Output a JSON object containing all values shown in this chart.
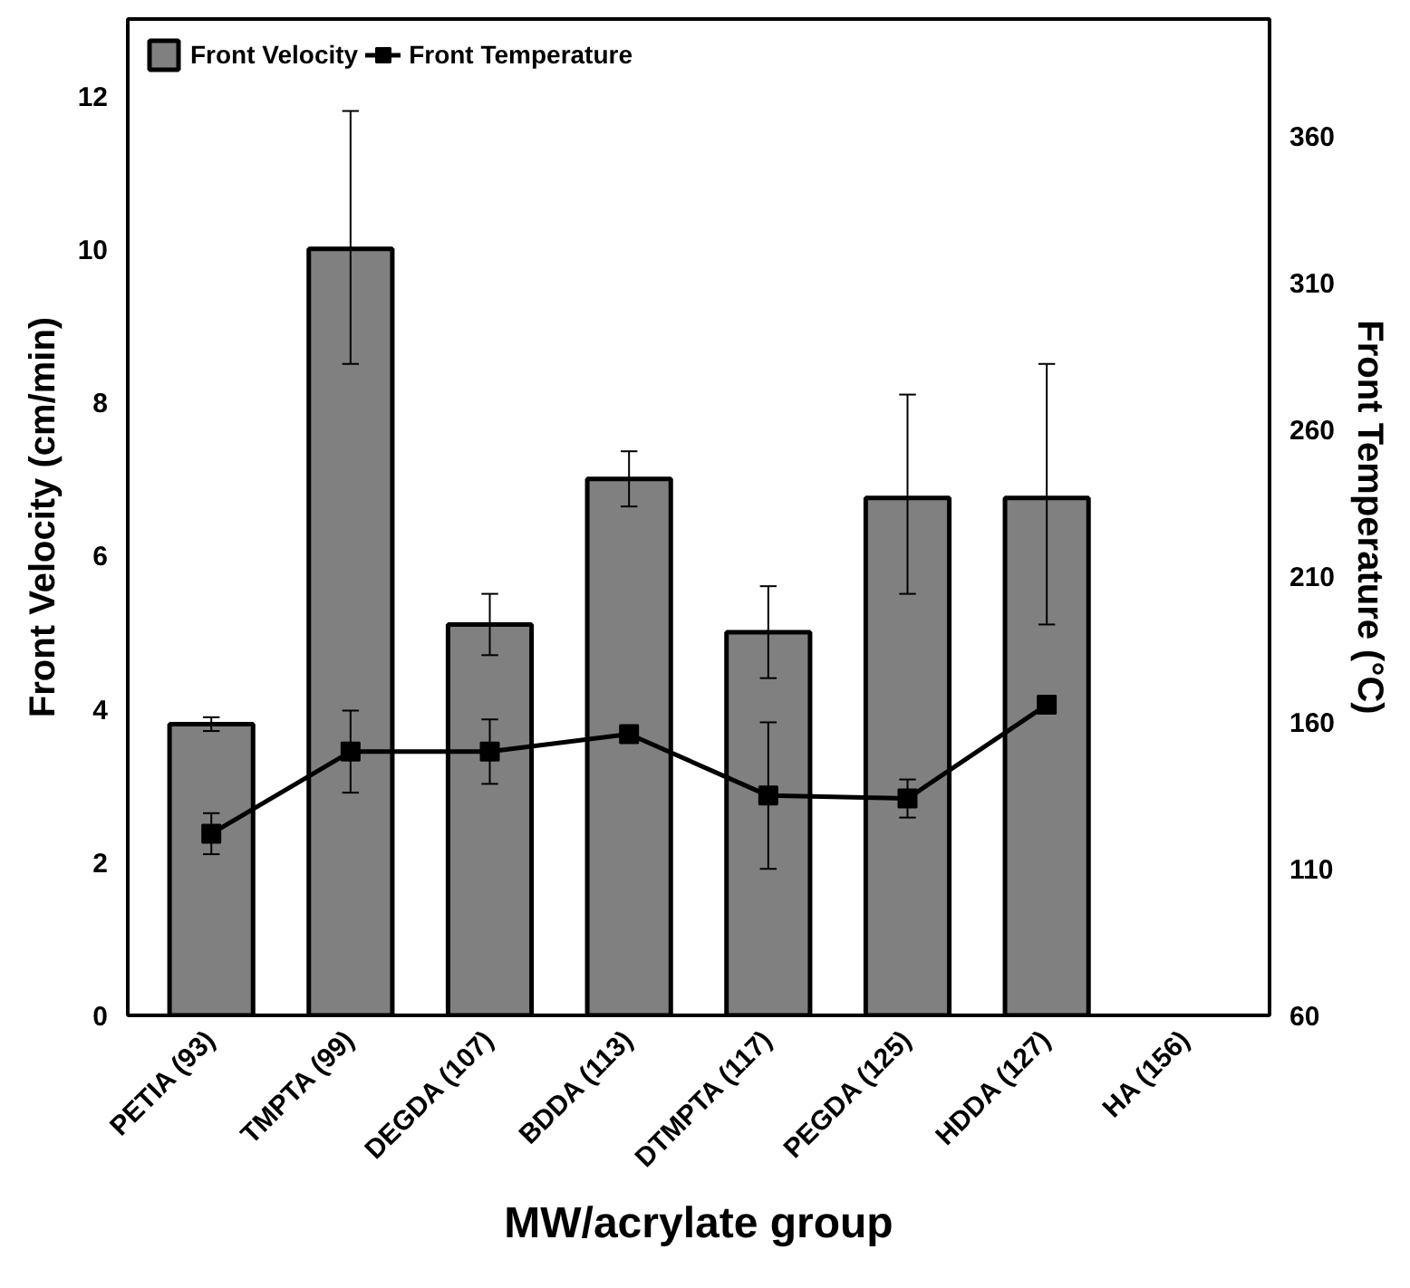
{
  "chart_data": {
    "type": "bar",
    "xlabel": "MW/acrylate group",
    "ylabel": "Front Velocity (cm/min)",
    "y2label": "Front Temperature (°C)",
    "categories": [
      "PETIA (93)",
      "TMPTA (99)",
      "DEGDA (107)",
      "BDDA (113)",
      "DTMPTA (117)",
      "PEGDA (125)",
      "HDDA (127)",
      "HA (156)"
    ],
    "series": [
      {
        "name": "Front Velocity",
        "color": "#808080",
        "values": [
          3.8,
          10.0,
          5.1,
          7.0,
          5.0,
          6.75,
          6.75,
          null
        ],
        "errors": [
          0.09,
          [
            8.5,
            11.8
          ],
          0.4,
          0.36,
          0.6,
          [
            5.5,
            8.1
          ],
          [
            5.1,
            8.5
          ],
          null
        ]
      },
      {
        "name": "Front Temperature",
        "type": "line",
        "axis": "y2",
        "color": "#000000",
        "marker": "square",
        "values": [
          122,
          150,
          150,
          156,
          135,
          134,
          166,
          null
        ],
        "errors": [
          7,
          14,
          11,
          null,
          25,
          6.5,
          null,
          null
        ]
      }
    ],
    "ylim": [
      0,
      13
    ],
    "yticks": [
      0,
      2,
      4,
      6,
      8,
      10,
      12
    ],
    "y2lim": [
      60,
      400
    ],
    "y2ticks": [
      60,
      110,
      160,
      210,
      260,
      310,
      360
    ],
    "grid": false,
    "legend": "top left"
  }
}
